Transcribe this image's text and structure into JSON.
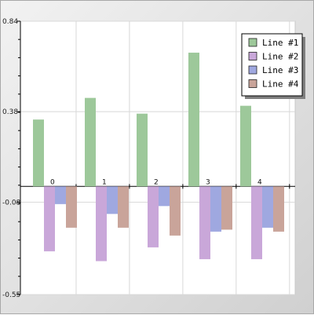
{
  "chart_data": {
    "type": "bar",
    "categories": [
      "0",
      "1",
      "2",
      "3",
      "4"
    ],
    "series": [
      {
        "name": "Line #1",
        "values": [
          0.34,
          0.45,
          0.37,
          0.68,
          0.41
        ],
        "color": "#9dc89a"
      },
      {
        "name": "Line #2",
        "values": [
          -0.33,
          -0.38,
          -0.31,
          -0.37,
          -0.37
        ],
        "color": "#c9a7d9"
      },
      {
        "name": "Line #3",
        "values": [
          -0.09,
          -0.14,
          -0.1,
          -0.23,
          -0.21
        ],
        "color": "#9fa8e0"
      },
      {
        "name": "Line #4",
        "values": [
          -0.21,
          -0.21,
          -0.25,
          -0.22,
          -0.23
        ],
        "color": "#c9a49a"
      }
    ],
    "yticks": [
      "0.84",
      "0.38",
      "-0.08",
      "-0.55"
    ],
    "ylim": [
      -0.55,
      0.84
    ],
    "grid": true,
    "legend_position": "top-right"
  }
}
